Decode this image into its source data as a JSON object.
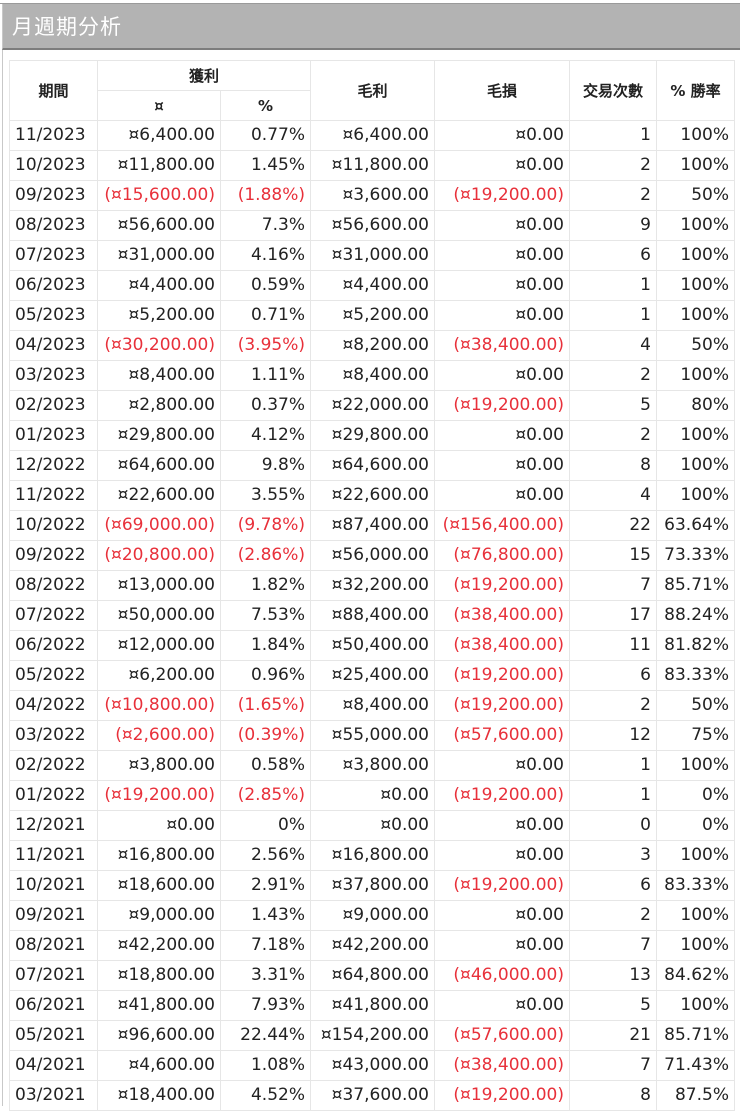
{
  "window": {
    "title": "月週期分析"
  },
  "colors": {
    "negative": "#e8303a",
    "text": "#222222",
    "title_bg": "#b3b3b3",
    "title_text": "#ffffff"
  },
  "table": {
    "headers": {
      "period": "期間",
      "profit": "獲利",
      "profit_currency": "¤",
      "profit_percent": "%",
      "gross_profit": "毛利",
      "gross_loss": "毛損",
      "trades": "交易次數",
      "win_rate": "% 勝率"
    },
    "rows": [
      {
        "period": "11/2023",
        "profit": "¤6,400.00",
        "pct": "0.77%",
        "gross_profit": "¤6,400.00",
        "gross_loss": "¤0.00",
        "trades": "1",
        "win_rate": "100%",
        "neg_profit": false,
        "neg_loss": false
      },
      {
        "period": "10/2023",
        "profit": "¤11,800.00",
        "pct": "1.45%",
        "gross_profit": "¤11,800.00",
        "gross_loss": "¤0.00",
        "trades": "2",
        "win_rate": "100%",
        "neg_profit": false,
        "neg_loss": false
      },
      {
        "period": "09/2023",
        "profit": "(¤15,600.00)",
        "pct": "(1.88%)",
        "gross_profit": "¤3,600.00",
        "gross_loss": "(¤19,200.00)",
        "trades": "2",
        "win_rate": "50%",
        "neg_profit": true,
        "neg_loss": true
      },
      {
        "period": "08/2023",
        "profit": "¤56,600.00",
        "pct": "7.3%",
        "gross_profit": "¤56,600.00",
        "gross_loss": "¤0.00",
        "trades": "9",
        "win_rate": "100%",
        "neg_profit": false,
        "neg_loss": false
      },
      {
        "period": "07/2023",
        "profit": "¤31,000.00",
        "pct": "4.16%",
        "gross_profit": "¤31,000.00",
        "gross_loss": "¤0.00",
        "trades": "6",
        "win_rate": "100%",
        "neg_profit": false,
        "neg_loss": false
      },
      {
        "period": "06/2023",
        "profit": "¤4,400.00",
        "pct": "0.59%",
        "gross_profit": "¤4,400.00",
        "gross_loss": "¤0.00",
        "trades": "1",
        "win_rate": "100%",
        "neg_profit": false,
        "neg_loss": false
      },
      {
        "period": "05/2023",
        "profit": "¤5,200.00",
        "pct": "0.71%",
        "gross_profit": "¤5,200.00",
        "gross_loss": "¤0.00",
        "trades": "1",
        "win_rate": "100%",
        "neg_profit": false,
        "neg_loss": false
      },
      {
        "period": "04/2023",
        "profit": "(¤30,200.00)",
        "pct": "(3.95%)",
        "gross_profit": "¤8,200.00",
        "gross_loss": "(¤38,400.00)",
        "trades": "4",
        "win_rate": "50%",
        "neg_profit": true,
        "neg_loss": true
      },
      {
        "period": "03/2023",
        "profit": "¤8,400.00",
        "pct": "1.11%",
        "gross_profit": "¤8,400.00",
        "gross_loss": "¤0.00",
        "trades": "2",
        "win_rate": "100%",
        "neg_profit": false,
        "neg_loss": false
      },
      {
        "period": "02/2023",
        "profit": "¤2,800.00",
        "pct": "0.37%",
        "gross_profit": "¤22,000.00",
        "gross_loss": "(¤19,200.00)",
        "trades": "5",
        "win_rate": "80%",
        "neg_profit": false,
        "neg_loss": true
      },
      {
        "period": "01/2023",
        "profit": "¤29,800.00",
        "pct": "4.12%",
        "gross_profit": "¤29,800.00",
        "gross_loss": "¤0.00",
        "trades": "2",
        "win_rate": "100%",
        "neg_profit": false,
        "neg_loss": false
      },
      {
        "period": "12/2022",
        "profit": "¤64,600.00",
        "pct": "9.8%",
        "gross_profit": "¤64,600.00",
        "gross_loss": "¤0.00",
        "trades": "8",
        "win_rate": "100%",
        "neg_profit": false,
        "neg_loss": false
      },
      {
        "period": "11/2022",
        "profit": "¤22,600.00",
        "pct": "3.55%",
        "gross_profit": "¤22,600.00",
        "gross_loss": "¤0.00",
        "trades": "4",
        "win_rate": "100%",
        "neg_profit": false,
        "neg_loss": false
      },
      {
        "period": "10/2022",
        "profit": "(¤69,000.00)",
        "pct": "(9.78%)",
        "gross_profit": "¤87,400.00",
        "gross_loss": "(¤156,400.00)",
        "trades": "22",
        "win_rate": "63.64%",
        "neg_profit": true,
        "neg_loss": true
      },
      {
        "period": "09/2022",
        "profit": "(¤20,800.00)",
        "pct": "(2.86%)",
        "gross_profit": "¤56,000.00",
        "gross_loss": "(¤76,800.00)",
        "trades": "15",
        "win_rate": "73.33%",
        "neg_profit": true,
        "neg_loss": true
      },
      {
        "period": "08/2022",
        "profit": "¤13,000.00",
        "pct": "1.82%",
        "gross_profit": "¤32,200.00",
        "gross_loss": "(¤19,200.00)",
        "trades": "7",
        "win_rate": "85.71%",
        "neg_profit": false,
        "neg_loss": true
      },
      {
        "period": "07/2022",
        "profit": "¤50,000.00",
        "pct": "7.53%",
        "gross_profit": "¤88,400.00",
        "gross_loss": "(¤38,400.00)",
        "trades": "17",
        "win_rate": "88.24%",
        "neg_profit": false,
        "neg_loss": true
      },
      {
        "period": "06/2022",
        "profit": "¤12,000.00",
        "pct": "1.84%",
        "gross_profit": "¤50,400.00",
        "gross_loss": "(¤38,400.00)",
        "trades": "11",
        "win_rate": "81.82%",
        "neg_profit": false,
        "neg_loss": true
      },
      {
        "period": "05/2022",
        "profit": "¤6,200.00",
        "pct": "0.96%",
        "gross_profit": "¤25,400.00",
        "gross_loss": "(¤19,200.00)",
        "trades": "6",
        "win_rate": "83.33%",
        "neg_profit": false,
        "neg_loss": true
      },
      {
        "period": "04/2022",
        "profit": "(¤10,800.00)",
        "pct": "(1.65%)",
        "gross_profit": "¤8,400.00",
        "gross_loss": "(¤19,200.00)",
        "trades": "2",
        "win_rate": "50%",
        "neg_profit": true,
        "neg_loss": true
      },
      {
        "period": "03/2022",
        "profit": "(¤2,600.00)",
        "pct": "(0.39%)",
        "gross_profit": "¤55,000.00",
        "gross_loss": "(¤57,600.00)",
        "trades": "12",
        "win_rate": "75%",
        "neg_profit": true,
        "neg_loss": true
      },
      {
        "period": "02/2022",
        "profit": "¤3,800.00",
        "pct": "0.58%",
        "gross_profit": "¤3,800.00",
        "gross_loss": "¤0.00",
        "trades": "1",
        "win_rate": "100%",
        "neg_profit": false,
        "neg_loss": false
      },
      {
        "period": "01/2022",
        "profit": "(¤19,200.00)",
        "pct": "(2.85%)",
        "gross_profit": "¤0.00",
        "gross_loss": "(¤19,200.00)",
        "trades": "1",
        "win_rate": "0%",
        "neg_profit": true,
        "neg_loss": true
      },
      {
        "period": "12/2021",
        "profit": "¤0.00",
        "pct": "0%",
        "gross_profit": "¤0.00",
        "gross_loss": "¤0.00",
        "trades": "0",
        "win_rate": "0%",
        "neg_profit": false,
        "neg_loss": false
      },
      {
        "period": "11/2021",
        "profit": "¤16,800.00",
        "pct": "2.56%",
        "gross_profit": "¤16,800.00",
        "gross_loss": "¤0.00",
        "trades": "3",
        "win_rate": "100%",
        "neg_profit": false,
        "neg_loss": false
      },
      {
        "period": "10/2021",
        "profit": "¤18,600.00",
        "pct": "2.91%",
        "gross_profit": "¤37,800.00",
        "gross_loss": "(¤19,200.00)",
        "trades": "6",
        "win_rate": "83.33%",
        "neg_profit": false,
        "neg_loss": true
      },
      {
        "period": "09/2021",
        "profit": "¤9,000.00",
        "pct": "1.43%",
        "gross_profit": "¤9,000.00",
        "gross_loss": "¤0.00",
        "trades": "2",
        "win_rate": "100%",
        "neg_profit": false,
        "neg_loss": false
      },
      {
        "period": "08/2021",
        "profit": "¤42,200.00",
        "pct": "7.18%",
        "gross_profit": "¤42,200.00",
        "gross_loss": "¤0.00",
        "trades": "7",
        "win_rate": "100%",
        "neg_profit": false,
        "neg_loss": false
      },
      {
        "period": "07/2021",
        "profit": "¤18,800.00",
        "pct": "3.31%",
        "gross_profit": "¤64,800.00",
        "gross_loss": "(¤46,000.00)",
        "trades": "13",
        "win_rate": "84.62%",
        "neg_profit": false,
        "neg_loss": true
      },
      {
        "period": "06/2021",
        "profit": "¤41,800.00",
        "pct": "7.93%",
        "gross_profit": "¤41,800.00",
        "gross_loss": "¤0.00",
        "trades": "5",
        "win_rate": "100%",
        "neg_profit": false,
        "neg_loss": false
      },
      {
        "period": "05/2021",
        "profit": "¤96,600.00",
        "pct": "22.44%",
        "gross_profit": "¤154,200.00",
        "gross_loss": "(¤57,600.00)",
        "trades": "21",
        "win_rate": "85.71%",
        "neg_profit": false,
        "neg_loss": true
      },
      {
        "period": "04/2021",
        "profit": "¤4,600.00",
        "pct": "1.08%",
        "gross_profit": "¤43,000.00",
        "gross_loss": "(¤38,400.00)",
        "trades": "7",
        "win_rate": "71.43%",
        "neg_profit": false,
        "neg_loss": true
      },
      {
        "period": "03/2021",
        "profit": "¤18,400.00",
        "pct": "4.52%",
        "gross_profit": "¤37,600.00",
        "gross_loss": "(¤19,200.00)",
        "trades": "8",
        "win_rate": "87.5%",
        "neg_profit": false,
        "neg_loss": true
      }
    ]
  }
}
